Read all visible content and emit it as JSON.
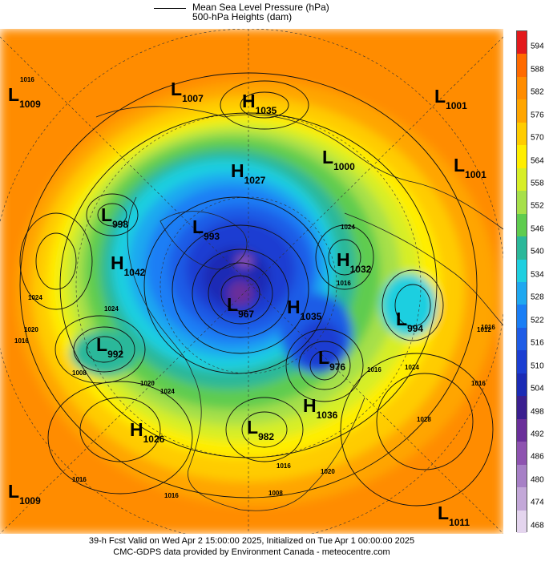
{
  "legend": {
    "line_label": "Mean Sea Level Pressure (hPa)",
    "fill_label": "500-hPa Heights (dam)"
  },
  "colorbar": {
    "labels": [
      "594",
      "588",
      "582",
      "576",
      "570",
      "564",
      "558",
      "552",
      "546",
      "540",
      "534",
      "528",
      "522",
      "516",
      "510",
      "504",
      "498",
      "492",
      "486",
      "480",
      "474",
      "468"
    ],
    "colors": [
      "#e31a1c",
      "#ff6a00",
      "#ff8c00",
      "#ffa500",
      "#ffcc00",
      "#ffee00",
      "#d7ee27",
      "#a6e04a",
      "#5fcc4f",
      "#2bb89a",
      "#1fcfe0",
      "#1fa8f0",
      "#1a7ef5",
      "#1e5ce6",
      "#1b3ed2",
      "#1b2bb5",
      "#3a1f8f",
      "#6a2f9a",
      "#8e53b0",
      "#a780c6",
      "#c3a8d8",
      "#e4d5ee"
    ]
  },
  "systems": [
    {
      "type": "L",
      "value": "1009"
    },
    {
      "type": "L",
      "value": "1007"
    },
    {
      "type": "H",
      "value": "1035"
    },
    {
      "type": "L",
      "value": "1001"
    },
    {
      "type": "L",
      "value": "1000"
    },
    {
      "type": "L",
      "value": "1001"
    },
    {
      "type": "H",
      "value": "1027"
    },
    {
      "type": "L",
      "value": "998"
    },
    {
      "type": "L",
      "value": "993"
    },
    {
      "type": "H",
      "value": "1042"
    },
    {
      "type": "H",
      "value": "1032"
    },
    {
      "type": "L",
      "value": "967"
    },
    {
      "type": "H",
      "value": "1035"
    },
    {
      "type": "L",
      "value": "994"
    },
    {
      "type": "L",
      "value": "992"
    },
    {
      "type": "L",
      "value": "976"
    },
    {
      "type": "H",
      "value": "1036"
    },
    {
      "type": "H",
      "value": "1026"
    },
    {
      "type": "L",
      "value": "982"
    },
    {
      "type": "L",
      "value": "1009"
    },
    {
      "type": "L",
      "value": "1011"
    }
  ],
  "isobar_labels": [
    "1016",
    "1024",
    "1020",
    "1024",
    "1016",
    "1008",
    "1020",
    "1024",
    "1024",
    "1016",
    "1012",
    "1024",
    "1016",
    "1016",
    "1028",
    "1016",
    "1008",
    "1020",
    "1016",
    "1016",
    "1016"
  ],
  "footer": {
    "line1": "39-h Fcst Valid on Wed Apr  2 15:00:00 2025, Initialized on Tue Apr  1 00:00:00 2025",
    "line2": "CMC-GDPS data provided by Environment Canada - meteocentre.com"
  }
}
